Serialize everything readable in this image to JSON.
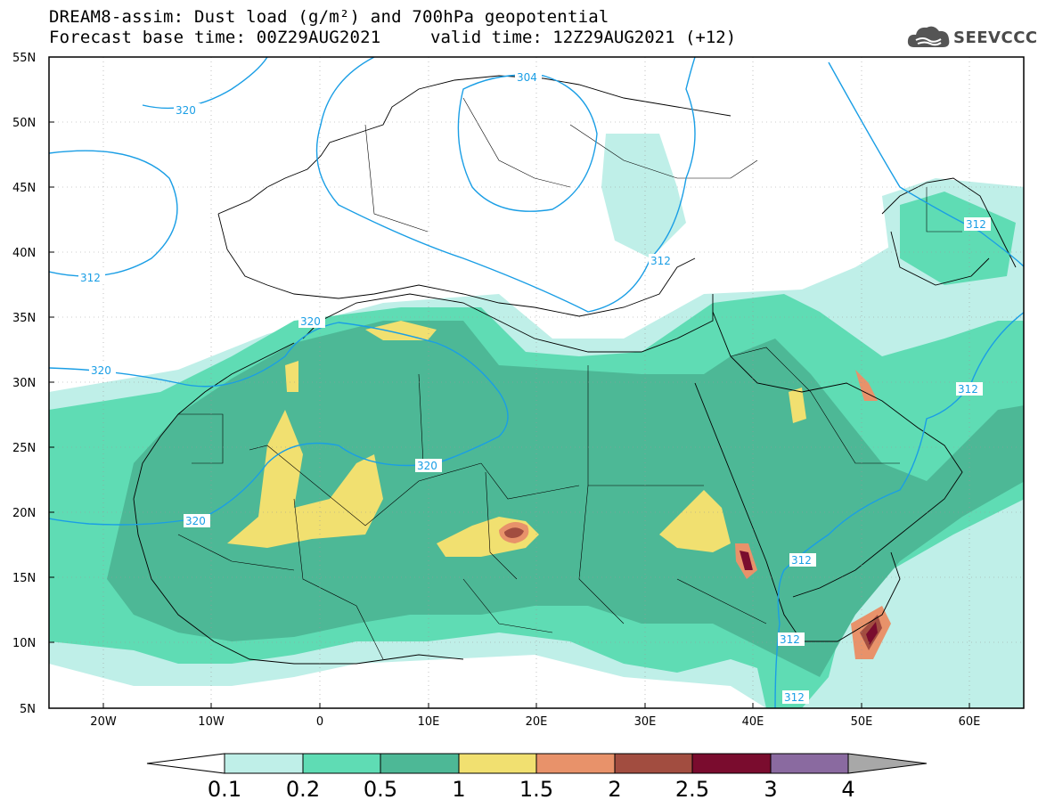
{
  "header": {
    "title": "DREAM8-assim: Dust load (g/m²) and 700hPa geopotential",
    "base_time": "Forecast base time: 00Z29AUG2021",
    "valid_time": "valid time: 12Z29AUG2021 (+12)"
  },
  "logo": {
    "text": "SEEVCCC",
    "icon": "cloud-icon"
  },
  "map": {
    "lon_range": [
      -25,
      65
    ],
    "lat_range": [
      5,
      55
    ],
    "lat_ticks": [
      "55N",
      "50N",
      "45N",
      "40N",
      "35N",
      "30N",
      "25N",
      "20N",
      "15N",
      "10N",
      "5N"
    ],
    "lon_ticks": [
      "20W",
      "10W",
      "0",
      "10E",
      "20E",
      "30E",
      "40E",
      "50E",
      "60E"
    ],
    "contour_labels": [
      "320",
      "304",
      "312",
      "312",
      "320",
      "320",
      "320",
      "320",
      "312",
      "312",
      "312",
      "312",
      "312"
    ]
  },
  "colorbar": {
    "labels": [
      "0.1",
      "0.2",
      "0.5",
      "1",
      "1.5",
      "2",
      "2.5",
      "3",
      "4"
    ],
    "colors": {
      "below": "#ffffff",
      "bin_0_1": "#bfefe8",
      "bin_0_2": "#5fdcb4",
      "bin_0_5": "#4db896",
      "bin_1": "#f1e070",
      "bin_1_5": "#e8926a",
      "bin_2": "#a24d40",
      "bin_2_5": "#7a0c2e",
      "bin_3": "#8a6aa0",
      "above": "#a8a8a8"
    }
  }
}
